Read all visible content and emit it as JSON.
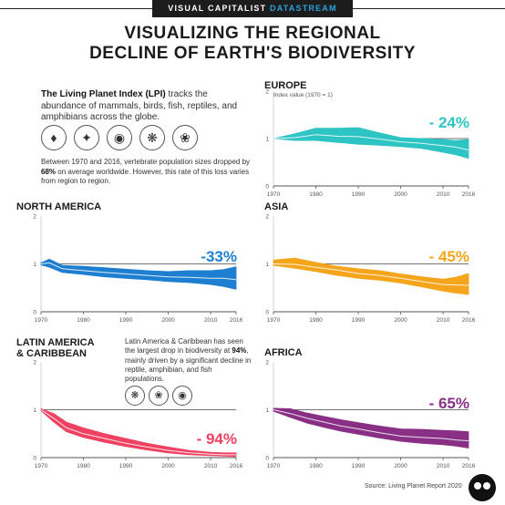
{
  "header": {
    "brand": "VISUAL CAPITALIST",
    "brand_accent": "DATASTREAM"
  },
  "title": {
    "line1": "VISUALIZING THE REGIONAL",
    "line2": "DECLINE OF EARTH'S BIODIVERSITY"
  },
  "intro": {
    "lead": "The Living Planet Index (LPI)",
    "text": " tracks the abundance of mammals, birds, fish, reptiles, and amphibians across the globe."
  },
  "icons": [
    "mammal-icon",
    "bird-icon",
    "fish-icon",
    "reptile-icon",
    "amphibian-icon"
  ],
  "stat": {
    "part1": "Between 1970 and 2016, vertebrate population sizes dropped by ",
    "highlight": "68%",
    "part2": " on average worldwide. However, this rate of this loss varies from region to region."
  },
  "latam_note": {
    "part1": "Latin America & Caribbean has seen the largest drop in biodiversity at ",
    "highlight": "94%",
    "part2": ", mainly driven by a significant decline in reptile, amphibian, and fish populations."
  },
  "latam_icons": [
    "reptile-icon",
    "amphibian-icon",
    "fish-icon"
  ],
  "source": "Source: Living Planet Report 2020",
  "chart_data": [
    {
      "type": "area",
      "region": "EUROPE",
      "subtitle": "Index value (1970 = 1)",
      "change_label": "- 24%",
      "color": "#2ec4c4",
      "xlim": [
        1970,
        2016
      ],
      "ylim": [
        0,
        2
      ],
      "x_ticks": [
        1970,
        1980,
        1990,
        2000,
        2010,
        2016
      ],
      "y_ticks": [
        0,
        1,
        2
      ],
      "x": [
        1970,
        1975,
        1980,
        1985,
        1990,
        1995,
        2000,
        2005,
        2010,
        2013,
        2016
      ],
      "mid": [
        1.0,
        1.02,
        1.08,
        1.05,
        1.04,
        0.99,
        0.93,
        0.9,
        0.85,
        0.82,
        0.76
      ],
      "upper": [
        1.0,
        1.1,
        1.22,
        1.22,
        1.23,
        1.12,
        1.02,
        1.0,
        0.98,
        0.96,
        0.98
      ],
      "lower": [
        1.0,
        0.96,
        0.96,
        0.92,
        0.88,
        0.86,
        0.83,
        0.79,
        0.71,
        0.66,
        0.58
      ]
    },
    {
      "type": "area",
      "region": "NORTH AMERICA",
      "subtitle": "",
      "change_label": "-33%",
      "color": "#1e7fd0",
      "xlim": [
        1970,
        2016
      ],
      "ylim": [
        0,
        2
      ],
      "x_ticks": [
        1970,
        1980,
        1990,
        2000,
        2010,
        2016
      ],
      "y_ticks": [
        0,
        1,
        2
      ],
      "x": [
        1970,
        1972,
        1975,
        1980,
        1985,
        1990,
        1995,
        2000,
        2005,
        2010,
        2013,
        2016
      ],
      "mid": [
        1.0,
        1.02,
        0.9,
        0.86,
        0.82,
        0.79,
        0.76,
        0.73,
        0.72,
        0.7,
        0.7,
        0.67
      ],
      "upper": [
        1.02,
        1.1,
        0.97,
        0.95,
        0.92,
        0.89,
        0.86,
        0.84,
        0.86,
        0.86,
        0.88,
        0.94
      ],
      "lower": [
        0.98,
        0.93,
        0.82,
        0.78,
        0.73,
        0.7,
        0.67,
        0.63,
        0.61,
        0.57,
        0.53,
        0.47
      ]
    },
    {
      "type": "area",
      "region": "ASIA",
      "subtitle": "",
      "change_label": "- 45%",
      "color": "#f5a51c",
      "xlim": [
        1970,
        2016
      ],
      "ylim": [
        0,
        2
      ],
      "x_ticks": [
        1970,
        1980,
        1990,
        2000,
        2010,
        2016
      ],
      "y_ticks": [
        0,
        1,
        2
      ],
      "x": [
        1970,
        1975,
        1980,
        1985,
        1990,
        1995,
        2000,
        2005,
        2010,
        2013,
        2016
      ],
      "mid": [
        1.0,
        0.99,
        0.93,
        0.87,
        0.8,
        0.76,
        0.7,
        0.63,
        0.57,
        0.56,
        0.55
      ],
      "upper": [
        1.08,
        1.12,
        1.03,
        0.95,
        0.9,
        0.86,
        0.79,
        0.73,
        0.68,
        0.72,
        0.8
      ],
      "lower": [
        0.97,
        0.91,
        0.84,
        0.76,
        0.7,
        0.66,
        0.6,
        0.52,
        0.43,
        0.39,
        0.36
      ]
    },
    {
      "type": "area",
      "region": "LATIN AMERICA & CARIBBEAN",
      "subtitle": "",
      "change_label": "- 94%",
      "color": "#ef4262",
      "xlim": [
        1970,
        2016
      ],
      "ylim": [
        0,
        2
      ],
      "x_ticks": [
        1970,
        1980,
        1990,
        2000,
        2010,
        2016
      ],
      "y_ticks": [
        0,
        1,
        2
      ],
      "x": [
        1970,
        1973,
        1976,
        1980,
        1985,
        1990,
        1995,
        2000,
        2005,
        2010,
        2013,
        2016
      ],
      "mid": [
        1.0,
        0.82,
        0.62,
        0.5,
        0.4,
        0.3,
        0.22,
        0.15,
        0.1,
        0.07,
        0.06,
        0.06
      ],
      "upper": [
        1.02,
        0.92,
        0.74,
        0.62,
        0.5,
        0.4,
        0.3,
        0.22,
        0.15,
        0.11,
        0.1,
        0.1
      ],
      "lower": [
        0.98,
        0.74,
        0.54,
        0.42,
        0.32,
        0.23,
        0.16,
        0.1,
        0.06,
        0.04,
        0.03,
        0.02
      ]
    },
    {
      "type": "area",
      "region": "AFRICA",
      "subtitle": "",
      "change_label": "- 65%",
      "color": "#8a2f86",
      "xlim": [
        1970,
        2016
      ],
      "ylim": [
        0,
        2
      ],
      "x_ticks": [
        1970,
        1980,
        1990,
        2000,
        2010,
        2016
      ],
      "y_ticks": [
        0,
        1,
        2
      ],
      "x": [
        1970,
        1974,
        1978,
        1982,
        1986,
        1990,
        1995,
        2000,
        2005,
        2010,
        2013,
        2016
      ],
      "mid": [
        1.0,
        0.92,
        0.82,
        0.74,
        0.66,
        0.6,
        0.52,
        0.45,
        0.42,
        0.4,
        0.37,
        0.35
      ],
      "upper": [
        1.03,
        1.02,
        0.93,
        0.86,
        0.79,
        0.73,
        0.66,
        0.6,
        0.59,
        0.57,
        0.56,
        0.54
      ],
      "lower": [
        0.97,
        0.84,
        0.72,
        0.63,
        0.55,
        0.49,
        0.41,
        0.34,
        0.3,
        0.27,
        0.24,
        0.2
      ]
    }
  ]
}
